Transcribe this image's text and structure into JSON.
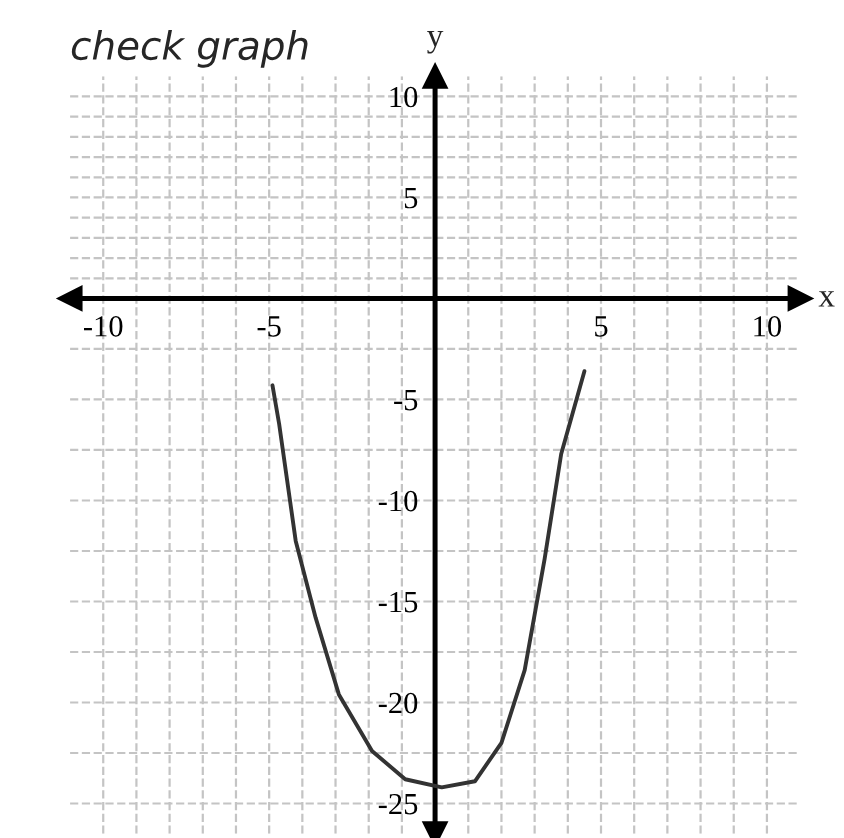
{
  "chart_data": {
    "type": "line",
    "title": "check graph",
    "xlabel": "x",
    "ylabel": "y",
    "x": [
      -4.9,
      -4.7,
      -4.2,
      -3.6,
      -2.9,
      -1.9,
      -0.9,
      0.2,
      1.2,
      2.0,
      2.7,
      3.3,
      3.8,
      4.5
    ],
    "values": [
      -4.3,
      -6.2,
      -12.0,
      -15.8,
      -19.6,
      -22.4,
      -23.8,
      -24.2,
      -23.9,
      -22.0,
      -18.4,
      -12.9,
      -7.7,
      -3.6
    ],
    "color": "#333333",
    "line_style": "solid",
    "xlim": [
      -11,
      11
    ],
    "ylim": [
      -26.5,
      11
    ],
    "xticks": [
      -10,
      {
        "value": -9,
        "label": null
      },
      {
        "value": -8,
        "label": null
      },
      {
        "value": -7,
        "label": null
      },
      {
        "value": -6,
        "label": null
      },
      -5,
      {
        "value": -4,
        "label": null
      },
      {
        "value": -3,
        "label": null
      },
      {
        "value": -2,
        "label": null
      },
      {
        "value": -1,
        "label": null
      },
      {
        "value": 1,
        "label": null
      },
      {
        "value": 2,
        "label": null
      },
      {
        "value": 3,
        "label": null
      },
      {
        "value": 4,
        "label": null
      },
      5,
      {
        "value": 6,
        "label": null
      },
      {
        "value": 7,
        "label": null
      },
      {
        "value": 8,
        "label": null
      },
      {
        "value": 9,
        "label": null
      },
      10
    ],
    "yticks": [
      10,
      {
        "value": 9,
        "label": null
      },
      {
        "value": 8,
        "label": null
      },
      {
        "value": 7,
        "label": null
      },
      {
        "value": 6,
        "label": null
      },
      5,
      {
        "value": 4,
        "label": null
      },
      {
        "value": 3,
        "label": null
      },
      {
        "value": 2,
        "label": null
      },
      {
        "value": 1,
        "label": null
      },
      {
        "value": -2.5,
        "label": null
      },
      -5,
      {
        "value": -7.5,
        "label": null
      },
      -10,
      {
        "value": -12.5,
        "label": null
      },
      -15,
      {
        "value": -17.5,
        "label": null
      },
      -20,
      {
        "value": -22.5,
        "label": null
      },
      -25
    ],
    "grid": true
  }
}
